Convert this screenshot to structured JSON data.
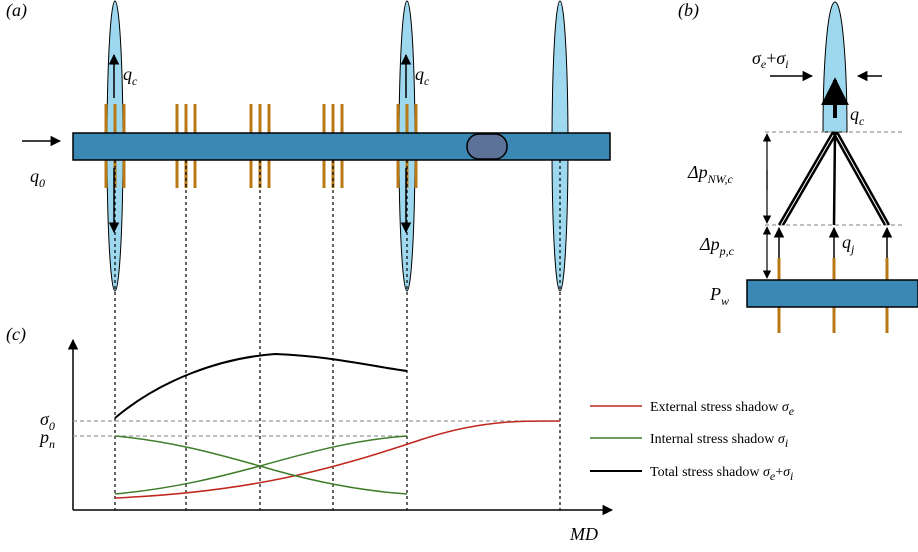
{
  "panels": {
    "a": "(a)",
    "b": "(b)",
    "c": "(c)"
  },
  "panel_a": {
    "flow_labels": [
      {
        "main": "q",
        "sub": "c"
      },
      {
        "main": "q",
        "sub": "c"
      }
    ],
    "inlet": {
      "main": "q",
      "sub": "0"
    }
  },
  "panel_b": {
    "stress": [
      {
        "main": "σ",
        "sub": "e"
      },
      "+",
      {
        "main": "σ",
        "sub": "i"
      }
    ],
    "cluster_flow": {
      "main": "q",
      "sub": "c"
    },
    "near_wellbore": {
      "main": "Δp",
      "sub": "NW,c"
    },
    "perforation": {
      "main": "Δp",
      "sub": "p,c"
    },
    "perf_flow": {
      "main": "q",
      "sub": "j"
    },
    "wellbore_pressure": {
      "main": "P",
      "sub": "w"
    }
  },
  "panel_c": {
    "sigma0": {
      "main": "σ",
      "sub": "0"
    },
    "pn": {
      "main": "p",
      "sub": "n"
    },
    "legend": [
      {
        "text": "External stress shadow",
        "symbol": [
          {
            "main": "σ",
            "sub": "e"
          }
        ]
      },
      {
        "text": "Internal stress shadow",
        "symbol": [
          {
            "main": "σ",
            "sub": "i"
          }
        ]
      },
      {
        "text": "Total stress shadow",
        "symbol": [
          {
            "main": "σ",
            "sub": "e"
          },
          "+",
          {
            "main": "σ",
            "sub": "i"
          }
        ]
      }
    ],
    "x_label": "MD"
  }
}
